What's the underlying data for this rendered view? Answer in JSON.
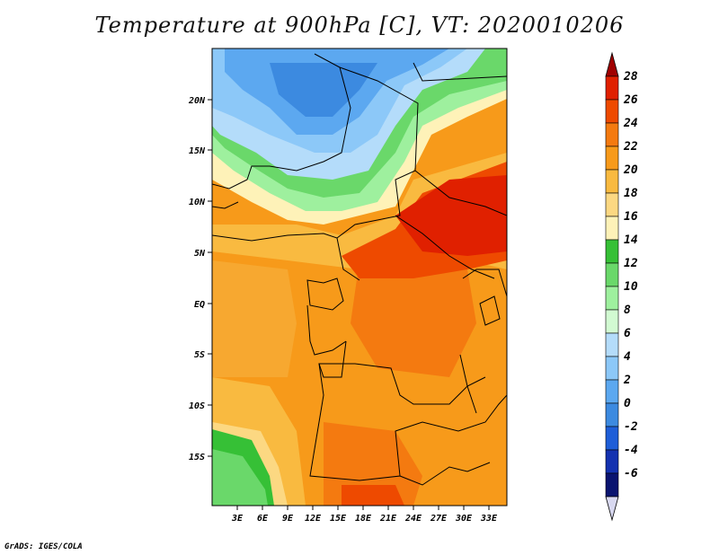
{
  "title": "Temperature at 900hPa [C], VT: 2020010206",
  "credit": "GrADS: IGES/COLA",
  "map": {
    "lat_labels": [
      "20N",
      "15N",
      "10N",
      "5N",
      "EQ",
      "5S",
      "10S",
      "15S"
    ],
    "lon_labels": [
      "3E",
      "6E",
      "9E",
      "12E",
      "15E",
      "18E",
      "21E",
      "24E",
      "27E",
      "30E",
      "33E"
    ]
  },
  "colorbar": {
    "levels": [
      "28",
      "26",
      "24",
      "22",
      "20",
      "18",
      "16",
      "14",
      "12",
      "10",
      "8",
      "6",
      "4",
      "2",
      "0",
      "-2",
      "-4",
      "-6"
    ],
    "colors": [
      "#a00000",
      "#e02000",
      "#ee4a00",
      "#f47a10",
      "#f79a1a",
      "#f9ba40",
      "#fcd882",
      "#fef2b8",
      "#36c036",
      "#6ad86a",
      "#9ef09e",
      "#d2fad2",
      "#b4dcfa",
      "#8cc8f8",
      "#5ca8f0",
      "#3c8ae0",
      "#1e5ed8",
      "#1432b0",
      "#0a1470",
      "#d8d8f0"
    ]
  }
}
